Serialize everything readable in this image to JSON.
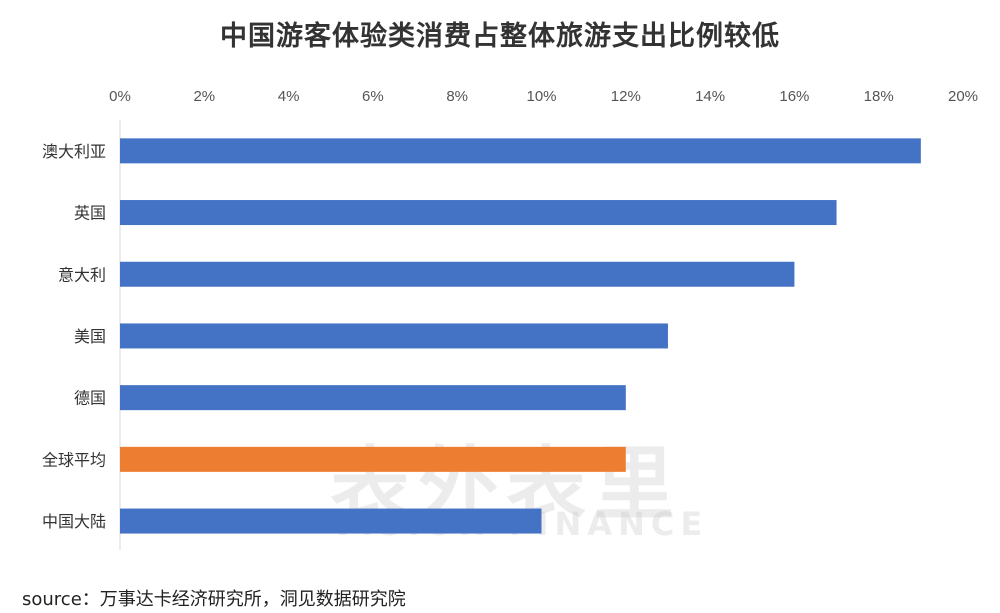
{
  "chart_data": {
    "type": "bar",
    "orientation": "horizontal",
    "title": "中国游客体验类消费占整体旅游支出比例较低",
    "categories": [
      "澳大利亚",
      "英国",
      "意大利",
      "美国",
      "德国",
      "全球平均",
      "中国大陆"
    ],
    "values": [
      19,
      17,
      16,
      13,
      12,
      12,
      10
    ],
    "unit": "%",
    "xlim": [
      0,
      20
    ],
    "xticks": [
      "0%",
      "2%",
      "4%",
      "6%",
      "8%",
      "10%",
      "12%",
      "14%",
      "16%",
      "18%",
      "20%"
    ],
    "xaxis_position": "top",
    "grid": false,
    "colors": {
      "default": "#4472C4",
      "highlight": "#ED7D31"
    },
    "highlight_category": "全球平均"
  },
  "source": "source：万事达卡经济研究所，洞见数据研究院",
  "watermark": {
    "cn": "表外表里",
    "en": "VISION FINANCE"
  }
}
